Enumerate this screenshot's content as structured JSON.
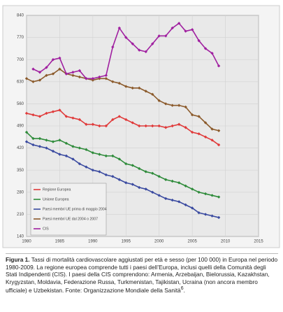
{
  "chart_data": {
    "type": "line",
    "x": [
      1980,
      1981,
      1982,
      1983,
      1984,
      1985,
      1986,
      1987,
      1988,
      1989,
      1990,
      1991,
      1992,
      1993,
      1994,
      1995,
      1996,
      1997,
      1998,
      1999,
      2000,
      2001,
      2002,
      2003,
      2004,
      2005,
      2006,
      2007,
      2008,
      2009
    ],
    "xlim": [
      1980,
      2015
    ],
    "xticks": [
      1980,
      1985,
      1990,
      1995,
      2000,
      2005,
      2010,
      2015
    ],
    "ylim": [
      140,
      840
    ],
    "yticks": [
      140,
      210,
      280,
      350,
      420,
      490,
      560,
      630,
      700,
      770,
      840
    ],
    "grid": true,
    "legend": "lower left",
    "series": [
      {
        "name": "Regione Europea",
        "color": "#e03a3a",
        "values": [
          530,
          525,
          520,
          530,
          535,
          540,
          520,
          515,
          510,
          495,
          495,
          490,
          490,
          510,
          520,
          510,
          500,
          490,
          490,
          490,
          490,
          485,
          490,
          495,
          485,
          470,
          465,
          455,
          445,
          430
        ]
      },
      {
        "name": "Unione Europea",
        "color": "#2e8b3a",
        "values": [
          470,
          450,
          450,
          445,
          440,
          445,
          435,
          425,
          420,
          415,
          405,
          400,
          395,
          395,
          385,
          370,
          365,
          355,
          345,
          340,
          330,
          320,
          315,
          310,
          300,
          290,
          280,
          275,
          270,
          265
        ]
      },
      {
        "name": "Paesi membri UE prima di maggio 2004",
        "color": "#3a4aa0",
        "values": [
          440,
          430,
          425,
          420,
          410,
          400,
          395,
          385,
          370,
          360,
          350,
          345,
          335,
          330,
          320,
          310,
          305,
          295,
          290,
          280,
          270,
          260,
          255,
          250,
          240,
          230,
          215,
          210,
          205,
          200
        ]
      },
      {
        "name": "Paesi membri UE dal 2004 o 2007",
        "color": "#8b5a2b",
        "values": [
          640,
          630,
          635,
          650,
          655,
          670,
          655,
          650,
          645,
          640,
          635,
          640,
          640,
          630,
          625,
          615,
          610,
          610,
          600,
          590,
          570,
          560,
          555,
          555,
          550,
          525,
          520,
          500,
          480,
          475
        ]
      },
      {
        "name": "CIS",
        "color": "#a020a0",
        "values": [
          null,
          670,
          660,
          675,
          700,
          705,
          655,
          660,
          665,
          640,
          640,
          645,
          650,
          740,
          800,
          770,
          750,
          730,
          725,
          750,
          775,
          775,
          800,
          815,
          790,
          795,
          760,
          735,
          720,
          680
        ]
      }
    ]
  },
  "caption": {
    "label": "Figura 1.",
    "text": "Tassi di mortalità cardiovascolare aggiustati per età e sesso (per 100 000) in Europa nel periodo 1980-2009. La regione europea comprende tutti i paesi dell’Europa, inclusi quelli della Comunità degli Stati Indipendenti (CIS). I paesi della CIS comprendono: Armenia, Arzebaijan, Bielorussia, Kazakhstan, Krygyzstan, Moldavia, Federazione Russa, Turkmenistan, Tajikistan, Ucraina (non ancora membro ufficiale) e Uzbekistan. Fonte: Organizzazione Mondiale della Sanità",
    "sup": "6"
  }
}
